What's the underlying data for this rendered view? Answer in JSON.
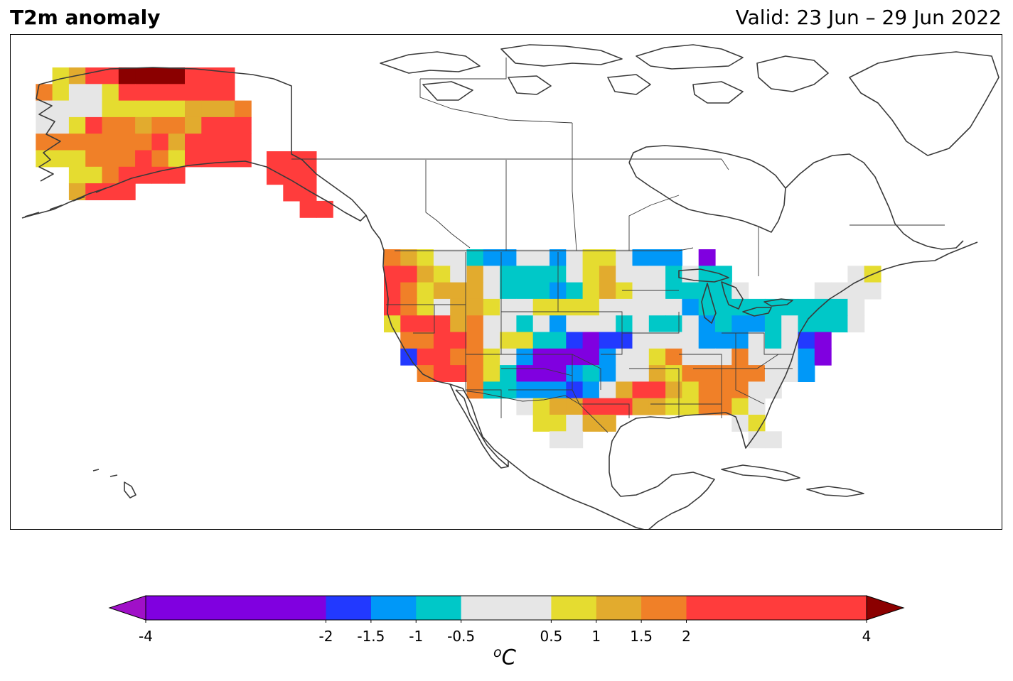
{
  "header": {
    "title": "T2m anomaly",
    "valid": "Valid: 23 Jun – 29 Jun 2022"
  },
  "colorbar": {
    "unit_base": "C",
    "unit_sup": "o",
    "ticks": [
      "-4",
      "-2",
      "-1.5",
      "-1",
      "-0.5",
      "0.5",
      "1",
      "1.5",
      "2",
      "4"
    ],
    "tick_values": [
      -4,
      -2,
      -1.5,
      -1,
      -0.5,
      0.5,
      1,
      1.5,
      2,
      4
    ],
    "bins": [
      {
        "from": -4,
        "to": -2,
        "color": "#8000e0"
      },
      {
        "from": -2,
        "to": -1.5,
        "color": "#2239ff"
      },
      {
        "from": -1.5,
        "to": -1,
        "color": "#0098f8"
      },
      {
        "from": -1,
        "to": -0.5,
        "color": "#00c8c8"
      },
      {
        "from": -0.5,
        "to": 0.5,
        "color": "#e6e6e6"
      },
      {
        "from": 0.5,
        "to": 1,
        "color": "#e5dc30"
      },
      {
        "from": 1,
        "to": 1.5,
        "color": "#e2ab2e"
      },
      {
        "from": 1.5,
        "to": 2,
        "color": "#f08028"
      },
      {
        "from": 2,
        "to": 4,
        "color": "#ff3c3c"
      }
    ],
    "under_color": "#a010c8",
    "over_color": "#8b0000"
  },
  "map_legend": {
    "P": "#8000e0",
    "B": "#2239ff",
    "A": "#0098f8",
    "C": "#00c8c8",
    "G": "#e6e6e6",
    "Y": "#e5dc30",
    "D": "#e2ab2e",
    "O": "#f08028",
    "R": "#ff3c3c",
    "M": "#8b0000"
  },
  "alaska_grid": [
    "..YDRRMMMMRRR.",
    ".OYGGYRRRRRRR.",
    ".GGGGYYYYYDDDO",
    ".GGYROODOODRRR",
    ".OOOOOOORDRRRR",
    ".YYYOOOROYRRRR",
    "...YYORRRR....",
    "...DRRR......."
  ],
  "panhandle_grid": [
    "RRR.",
    "RRR.",
    ".RR.",
    "..RR"
  ],
  "conus_grid": [
    "ODYGGCAAGGAGYYGAAA.P..........",
    "RRDYGDGCCCCGYDGGGCGCC.......GY",
    "ROYDDDGCCCACYDYGGCCCCG....GGGG",
    "ROYGDDYGGYYYYGGGGGACCCCCCCCCG.",
    "YRRRDOGGCGAGGGCGCCGACAACGCCCG.",
    ".OORROGYYCCBPBBGGGGAAAGCGBP...",
    ".BRROOYGAPPPPAGGYOGGGOGGGAP...",
    "..ORROYCPPPACAGGDYOOOOOGGA....",
    ".....OCCAAABAGDRRDYOOOGG......",
    "........GYDDRRRDDYYOOYG.......",
    ".........YYGDD.......GY.......",
    "..........GG..........GG......"
  ]
}
